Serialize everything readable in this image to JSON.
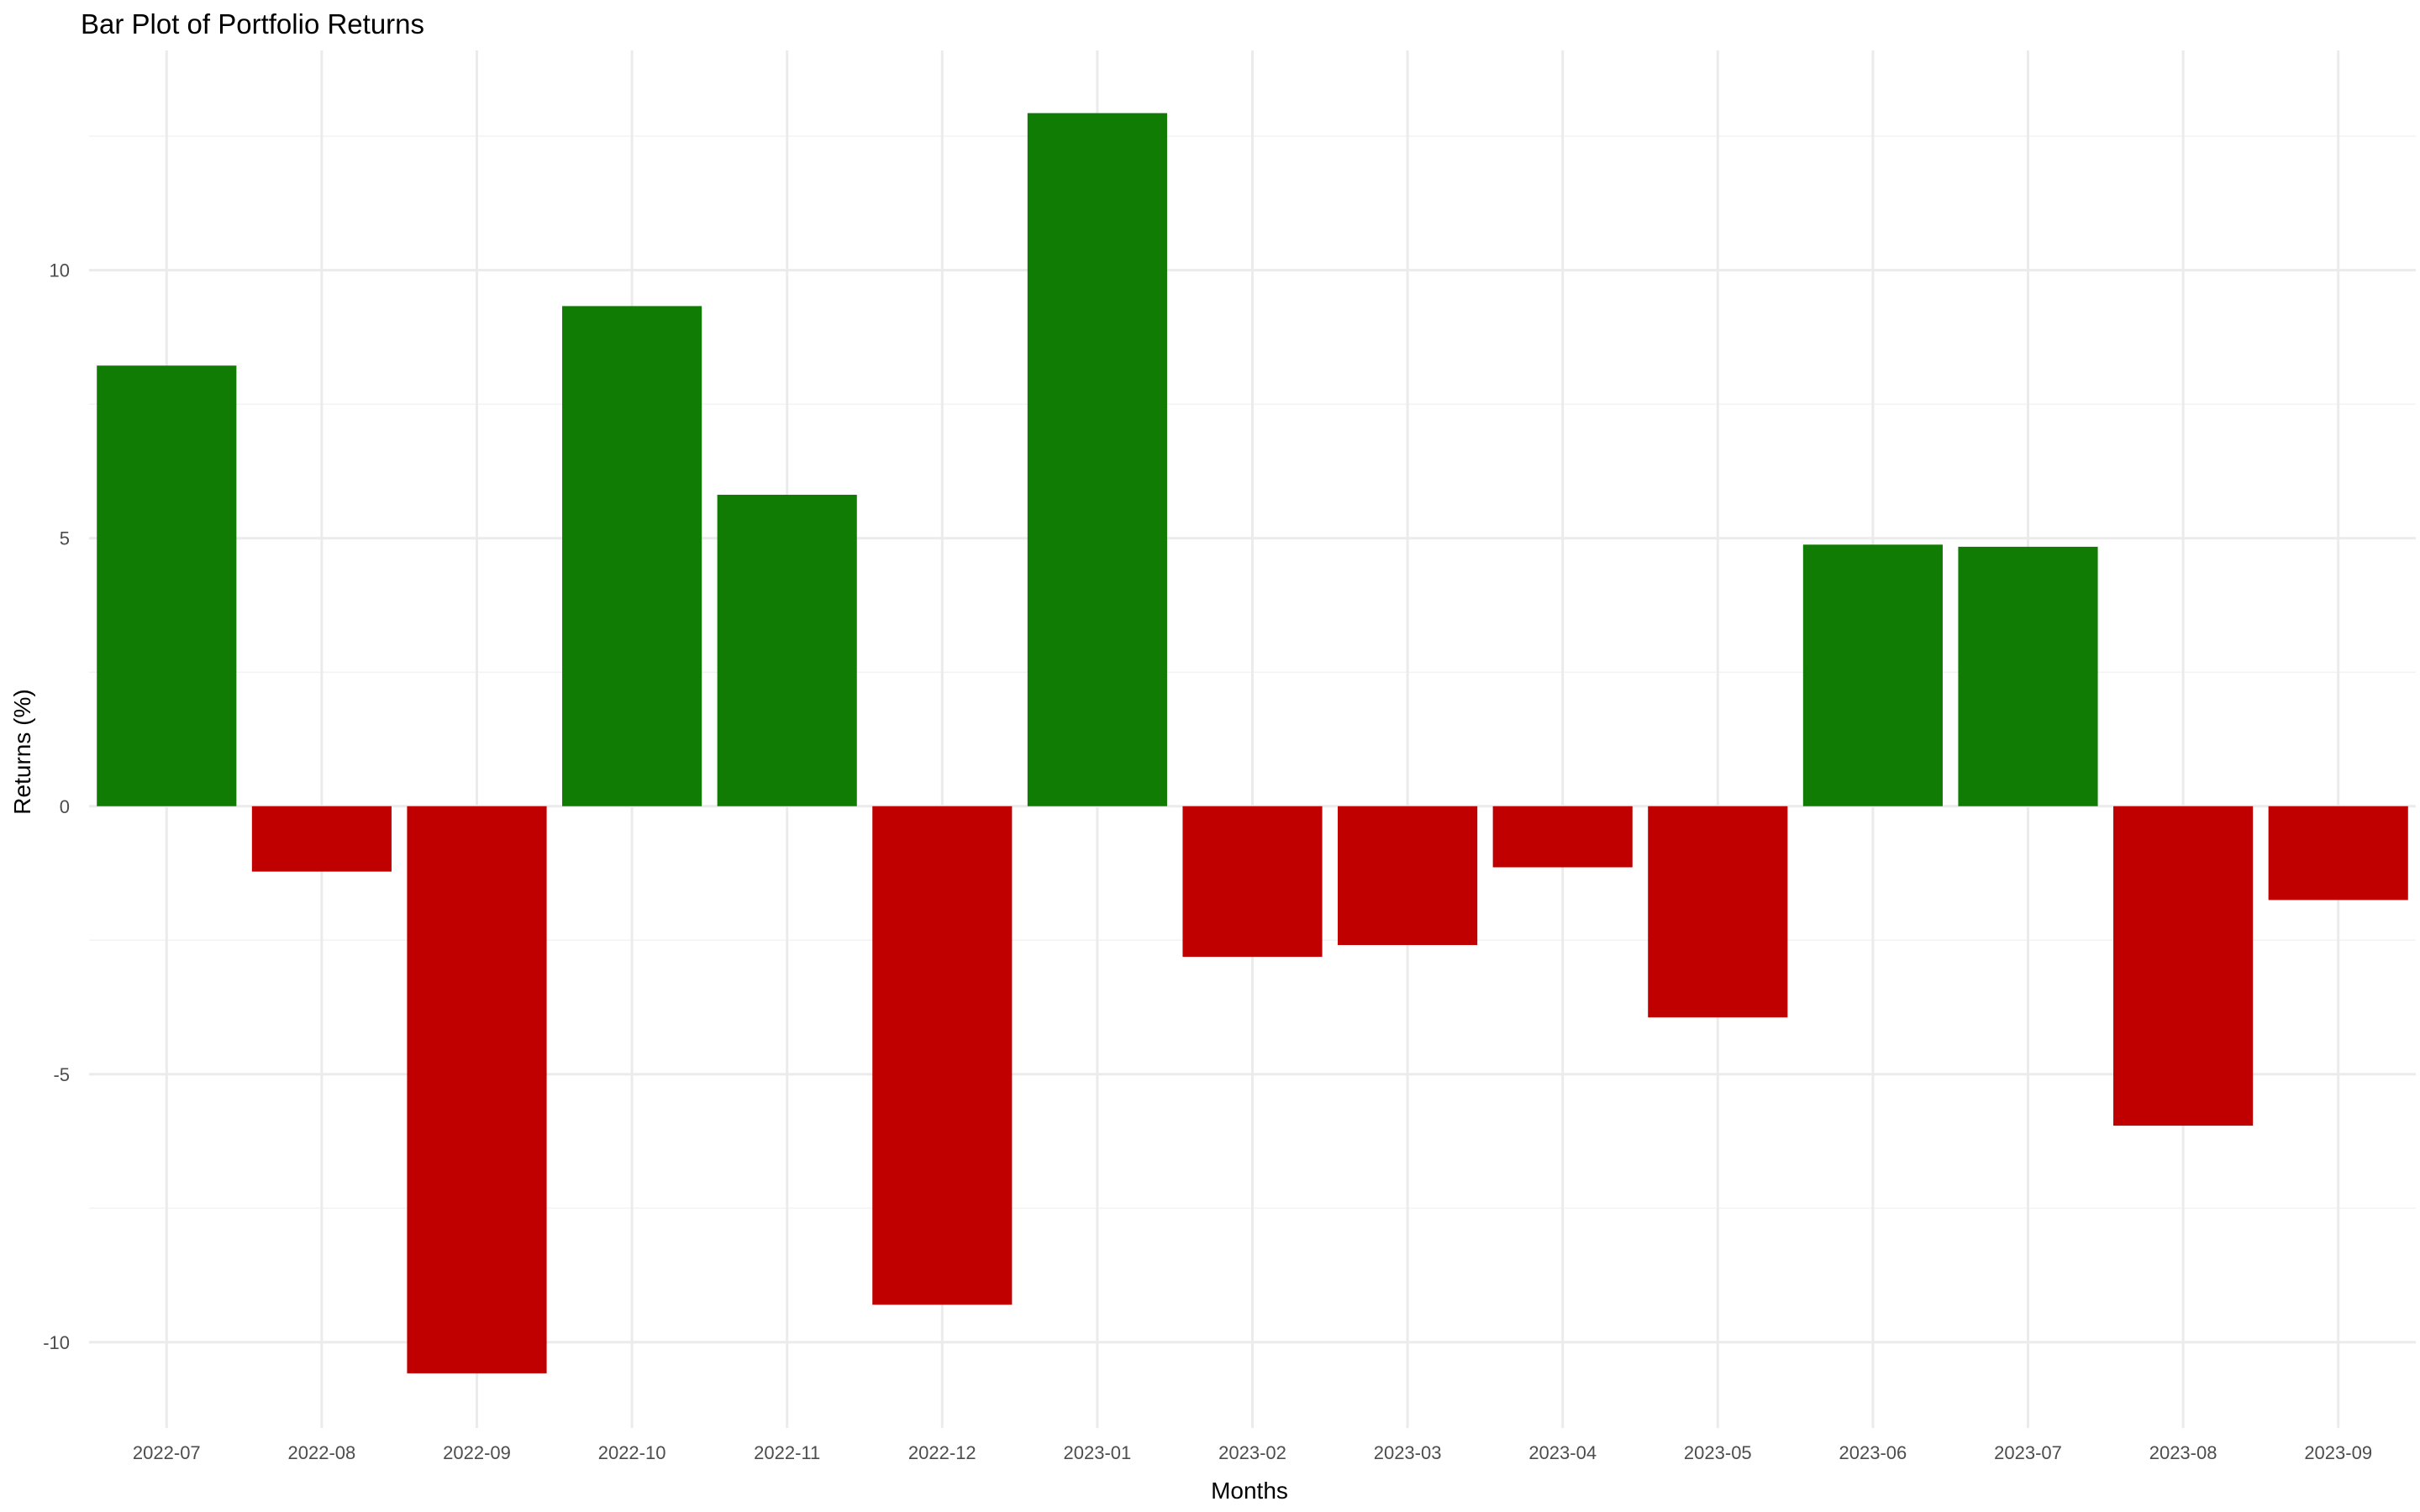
{
  "chart_data": {
    "type": "bar",
    "title": "Bar Plot of Portfolio Returns",
    "xlabel": "Months",
    "ylabel": "Returns (%)",
    "categories": [
      "2022-07",
      "2022-08",
      "2022-09",
      "2022-10",
      "2022-11",
      "2022-12",
      "2023-01",
      "2023-02",
      "2023-03",
      "2023-04",
      "2023-05",
      "2023-06",
      "2023-07",
      "2023-08",
      "2023-09"
    ],
    "values": [
      8.22,
      -1.22,
      -10.58,
      9.33,
      5.81,
      -9.3,
      12.93,
      -2.81,
      -2.59,
      -1.14,
      -3.94,
      4.88,
      4.84,
      -5.96,
      -1.75
    ],
    "ylim": [
      -11.6,
      14.1
    ],
    "yticks": [
      -10,
      -5,
      0,
      5,
      10
    ],
    "ytick_labels": [
      "-10",
      "-5",
      "0",
      "5",
      "10"
    ],
    "grid": true,
    "legend": "none",
    "colors": {
      "positive": "#117c03",
      "negative": "#c00000",
      "grid_major": "#ebebeb",
      "grid_minor": "#f3f3f3",
      "background": "#ffffff"
    }
  }
}
